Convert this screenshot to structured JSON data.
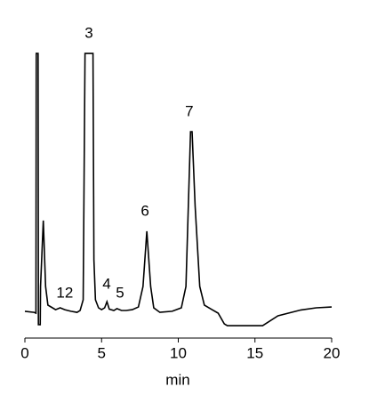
{
  "chart_data": {
    "type": "line",
    "x_label": "min",
    "xlim": [
      0,
      20
    ],
    "xticks": [
      0,
      5,
      10,
      15,
      20
    ],
    "ylim": [
      -10,
      110
    ],
    "series": [
      {
        "color": "#000000",
        "x": [
          0,
          0.6,
          0.72,
          0.74,
          0.86,
          0.88,
          1.0,
          1.02,
          1.2,
          1.35,
          1.5,
          1.8,
          2.0,
          2.3,
          2.6,
          3.0,
          3.4,
          3.6,
          3.8,
          3.92,
          4.44,
          4.5,
          4.6,
          4.8,
          5.0,
          5.2,
          5.35,
          5.5,
          5.8,
          6.0,
          6.3,
          6.6,
          7.0,
          7.4,
          7.7,
          7.95,
          8.2,
          8.4,
          8.8,
          9.6,
          10.2,
          10.5,
          10.8,
          10.9,
          11.1,
          11.4,
          11.7,
          12.2,
          12.6,
          13.0,
          13.2,
          15.5,
          16.5,
          18,
          19,
          20
        ],
        "values": [
          0.7,
          0.3,
          0,
          97.3,
          97.3,
          -4.3,
          -4.3,
          10,
          34.7,
          10,
          3,
          2,
          1.3,
          2,
          1.3,
          0.7,
          0.3,
          1,
          5,
          97.3,
          97.3,
          20,
          5,
          2,
          1.3,
          2,
          4.3,
          1.5,
          1,
          1.7,
          1,
          1,
          1.3,
          2.3,
          10,
          30.7,
          10,
          2,
          0.3,
          0.7,
          2,
          10,
          68,
          68,
          40,
          10,
          3,
          1.3,
          0,
          -4,
          -4.7,
          -4.7,
          -1,
          1.2,
          2,
          2.3
        ]
      }
    ],
    "annotations": [
      {
        "text": "12",
        "x": 2.6,
        "y": 7.3
      },
      {
        "text": "3",
        "x": 4.17,
        "y": 104.7
      },
      {
        "text": "4",
        "x": 5.33,
        "y": 10.7
      },
      {
        "text": "5",
        "x": 6.2,
        "y": 7.3
      },
      {
        "text": "6",
        "x": 7.83,
        "y": 38
      },
      {
        "text": "7",
        "x": 10.72,
        "y": 75.3
      }
    ]
  }
}
